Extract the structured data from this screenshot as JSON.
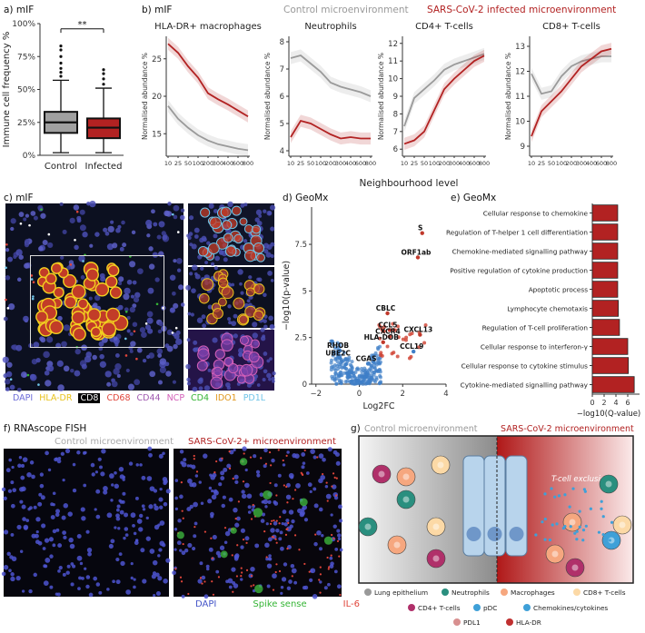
{
  "panels": {
    "a": {
      "label": "a) mIF"
    },
    "b": {
      "label": "b) mIF",
      "control": "Control microenvironment",
      "infected": "SARS-CoV-2 infected microenvironment",
      "xlabel": "Neighbourhood level"
    },
    "c": {
      "label": "c) mIF"
    },
    "d": {
      "label": "d) GeoMx"
    },
    "e": {
      "label": "e) GeoMx"
    },
    "f": {
      "label": "f) RNAscope FISH",
      "control": "Control microenvironment",
      "infected": "SARS-CoV-2+ microenvironment"
    },
    "g": {
      "label": "g)",
      "control": "Control microenvironment",
      "infected": "SARS-CoV-2 microenvironment",
      "exclusion": "T-cell exclusion"
    }
  },
  "stains_c": [
    {
      "name": "DAPI",
      "color": "#6d6dd8"
    },
    {
      "name": "HLA-DR",
      "color": "#e8c21a"
    },
    {
      "name": "CD8",
      "color": "#ffffff"
    },
    {
      "name": "CD68",
      "color": "#e0453a"
    },
    {
      "name": "CD44",
      "color": "#a05ab0"
    },
    {
      "name": "NCP",
      "color": "#d35fb8"
    },
    {
      "name": "CD4",
      "color": "#35b535"
    },
    {
      "name": "IDO1",
      "color": "#e0961a"
    },
    {
      "name": "PD1L",
      "color": "#6fc4e8"
    }
  ],
  "stains_f": [
    {
      "name": "DAPI",
      "color": "#4455c8"
    },
    {
      "name": "Spike sense",
      "color": "#35b535"
    },
    {
      "name": "IL-6",
      "color": "#e0453a"
    }
  ],
  "legend_g": {
    "lung": "Lung epithelium",
    "neut": "Neutrophils",
    "macro": "Macrophages",
    "cd8": "CD8+ T-cells",
    "cd4": "CD4+ T-cells",
    "pdc": "pDC",
    "chemo": "Chemokines/cytokines",
    "pdl1": "PDL1",
    "hladr": "HLA-DR"
  },
  "chart_data": [
    {
      "id": "a",
      "type": "box",
      "title": "",
      "ylabel": "Immune cell frequency %",
      "categories": [
        "Control",
        "Infected"
      ],
      "ylim": [
        0,
        100
      ],
      "yticks": [
        0,
        25,
        50,
        75,
        100
      ],
      "colors": [
        "#a0a0a0",
        "#b22222"
      ],
      "boxes": [
        {
          "min": 2,
          "q1": 17,
          "median": 25,
          "q3": 33,
          "max": 57
        },
        {
          "min": 2,
          "q1": 13,
          "median": 21,
          "q3": 28,
          "max": 51
        }
      ],
      "outliers": [
        [
          60,
          63,
          66,
          70,
          75,
          80,
          83
        ],
        [
          54,
          58,
          62,
          65
        ]
      ],
      "annotation": "**"
    },
    {
      "id": "b",
      "type": "line",
      "x": [
        "10",
        "25",
        "50",
        "100",
        "200",
        "300",
        "400",
        "600",
        "800"
      ],
      "ylabel": "Normalised abundance %",
      "subplots": [
        {
          "title": "HLA-DR+ macrophages",
          "ylim": [
            12,
            28
          ],
          "yticks": [
            15,
            20,
            25
          ],
          "series": [
            {
              "name": "Control",
              "color": "#9a9a9a",
              "values": [
                18.7,
                17.0,
                15.8,
                14.8,
                14.1,
                13.6,
                13.3,
                13.0,
                12.8
              ]
            },
            {
              "name": "Infected",
              "color": "#b22222",
              "values": [
                27.0,
                25.8,
                24.0,
                22.5,
                20.4,
                19.6,
                18.9,
                18.1,
                17.3
              ]
            }
          ]
        },
        {
          "title": "Neutrophils",
          "ylim": [
            3.8,
            8.2
          ],
          "yticks": [
            4,
            5,
            6,
            7,
            8
          ],
          "series": [
            {
              "name": "Control",
              "color": "#9a9a9a",
              "values": [
                7.4,
                7.5,
                7.2,
                6.9,
                6.5,
                6.35,
                6.25,
                6.15,
                6.0
              ]
            },
            {
              "name": "Infected",
              "color": "#b22222",
              "values": [
                4.5,
                5.1,
                5.0,
                4.8,
                4.6,
                4.45,
                4.5,
                4.45,
                4.45
              ]
            }
          ]
        },
        {
          "title": "CD4+ T-cells",
          "ylim": [
            5.6,
            12.4
          ],
          "yticks": [
            6,
            7,
            8,
            9,
            10,
            11,
            12
          ],
          "series": [
            {
              "name": "Control",
              "color": "#9a9a9a",
              "values": [
                7.3,
                8.9,
                9.4,
                9.9,
                10.5,
                10.8,
                11.0,
                11.2,
                11.4
              ]
            },
            {
              "name": "Infected",
              "color": "#b22222",
              "values": [
                6.3,
                6.5,
                7.0,
                8.2,
                9.4,
                10.0,
                10.5,
                11.0,
                11.3
              ]
            }
          ]
        },
        {
          "title": "CD8+ T-cells",
          "ylim": [
            8.6,
            13.4
          ],
          "yticks": [
            9,
            10,
            11,
            12,
            13
          ],
          "series": [
            {
              "name": "Control",
              "color": "#9a9a9a",
              "values": [
                11.9,
                11.1,
                11.2,
                11.8,
                12.2,
                12.4,
                12.5,
                12.6,
                12.6
              ]
            },
            {
              "name": "Infected",
              "color": "#b22222",
              "values": [
                9.4,
                10.4,
                10.8,
                11.2,
                11.7,
                12.2,
                12.5,
                12.8,
                12.9
              ]
            }
          ]
        }
      ]
    },
    {
      "id": "d",
      "type": "scatter",
      "xlabel": "Log2FC",
      "ylabel": "−log10(p-value)",
      "xlim": [
        -2.2,
        4.0
      ],
      "ylim": [
        0,
        9.5
      ],
      "xticks": [
        -2,
        0,
        2,
        4
      ],
      "yticks": [
        0,
        2.5,
        5,
        7.5
      ],
      "labels": [
        {
          "text": "S",
          "x": 2.9,
          "y": 8.1
        },
        {
          "text": "ORF1ab",
          "x": 2.7,
          "y": 6.8
        },
        {
          "text": "CBLC",
          "x": 1.3,
          "y": 3.8
        },
        {
          "text": "CCL5",
          "x": 1.4,
          "y": 2.9
        },
        {
          "text": "CXCR4",
          "x": 1.4,
          "y": 2.55
        },
        {
          "text": "HLA-DOB",
          "x": 1.1,
          "y": 2.25
        },
        {
          "text": "CXCL13",
          "x": 2.8,
          "y": 2.65
        },
        {
          "text": "CCL19",
          "x": 2.5,
          "y": 1.75
        },
        {
          "text": "RHOB",
          "x": -0.9,
          "y": 1.8
        },
        {
          "text": "UBE2C",
          "x": -0.9,
          "y": 1.4
        },
        {
          "text": "CGAS",
          "x": 0.4,
          "y": 1.1
        }
      ]
    },
    {
      "id": "e",
      "type": "bar",
      "orientation": "horizontal",
      "xlabel": "−log10(Q-value)",
      "xlim": [
        0,
        8
      ],
      "xticks": [
        0,
        2,
        4,
        6
      ],
      "categories": [
        "Cellular response to chemokine",
        "Regulation of T-helper 1 cell differentiation",
        "Chemokine-mediated signalling pathway",
        "Positive regulation of cytokine production",
        "Apoptotic process",
        "Lymphocyte chemotaxis",
        "Regulation of T-cell proliferation",
        "Cellular response to interferon-γ",
        "Cellular response to cytokine stimulus",
        "Cytokine-mediated signalling pathway"
      ],
      "values": [
        4.3,
        4.3,
        4.3,
        4.3,
        4.3,
        4.4,
        4.6,
        6.0,
        6.1,
        7.1
      ],
      "color": "#b22222"
    }
  ]
}
